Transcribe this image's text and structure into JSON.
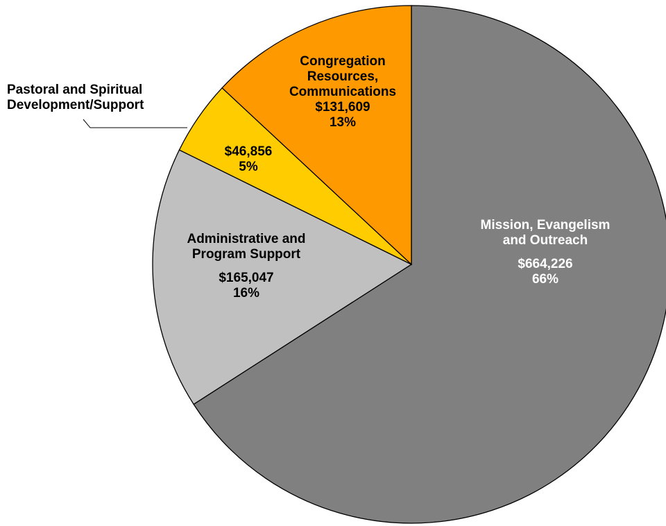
{
  "chart_data": {
    "type": "pie",
    "title": "",
    "slices": [
      {
        "name": "Mission, Evangelism and Outreach",
        "name_lines": [
          "Mission, Evangelism",
          "and Outreach"
        ],
        "value": 664226,
        "value_label": "$664,226",
        "percent": 66,
        "percent_label": "66%",
        "color": "#808080"
      },
      {
        "name": "Administrative and Program Support",
        "name_lines": [
          "Administrative and",
          "Program Support"
        ],
        "value": 165047,
        "value_label": "$165,047",
        "percent": 16,
        "percent_label": "16%",
        "color": "#c0c0c0"
      },
      {
        "name": "Pastoral and Spiritual Development/Support",
        "name_lines": [
          "Pastoral and Spiritual",
          "Development/Support"
        ],
        "value": 46856,
        "value_label": "$46,856",
        "percent": 5,
        "percent_label": "5%",
        "color": "#ffcc00"
      },
      {
        "name": "Congregation Resources, Communications",
        "name_lines": [
          "Congregation",
          "Resources,",
          "Communications"
        ],
        "value": 131609,
        "value_label": "$131,609",
        "percent": 13,
        "percent_label": "13%",
        "color": "#ff9900"
      }
    ],
    "start_angle_degrees": 0,
    "direction": "clockwise",
    "legend": "none",
    "label_placement": "inside slices; Pastoral and Spiritual Development/Support name outside with leader line"
  }
}
